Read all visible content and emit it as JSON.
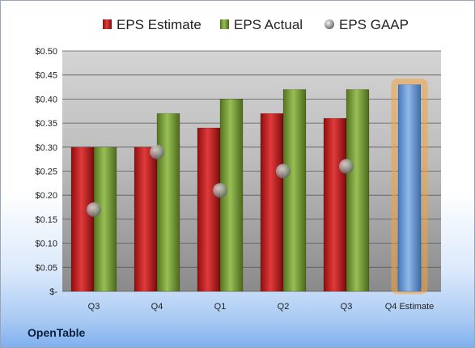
{
  "company": "OpenTable",
  "chart_data": {
    "type": "bar",
    "categories": [
      "Q3",
      "Q4",
      "Q1",
      "Q2",
      "Q3",
      "Q4 Estimate"
    ],
    "series": [
      {
        "name": "EPS Estimate",
        "color": "#cc1f1f",
        "values": [
          0.3,
          0.3,
          0.34,
          0.37,
          0.36,
          null
        ]
      },
      {
        "name": "EPS Actual",
        "color": "#7ea03c",
        "values": [
          0.3,
          0.37,
          0.4,
          0.42,
          0.42,
          null
        ]
      },
      {
        "name": "EPS GAAP",
        "color": "#9aa0a6",
        "values": [
          0.17,
          0.29,
          0.21,
          0.25,
          0.26,
          null
        ]
      }
    ],
    "forecast": {
      "category": "Q4 Estimate",
      "value": 0.43,
      "color": "#6f9fd8",
      "glow": "#f2a33a"
    },
    "ylim": [
      0,
      0.5
    ],
    "yticks": [
      {
        "value": 0.0,
        "label": "$-"
      },
      {
        "value": 0.05,
        "label": "$0.05"
      },
      {
        "value": 0.1,
        "label": "$0.10"
      },
      {
        "value": 0.15,
        "label": "$0.15"
      },
      {
        "value": 0.2,
        "label": "$0.20"
      },
      {
        "value": 0.25,
        "label": "$0.25"
      },
      {
        "value": 0.3,
        "label": "$0.30"
      },
      {
        "value": 0.35,
        "label": "$0.35"
      },
      {
        "value": 0.4,
        "label": "$0.40"
      },
      {
        "value": 0.45,
        "label": "$0.45"
      },
      {
        "value": 0.5,
        "label": "$0.50"
      }
    ],
    "grid": true,
    "legend_position": "top"
  }
}
